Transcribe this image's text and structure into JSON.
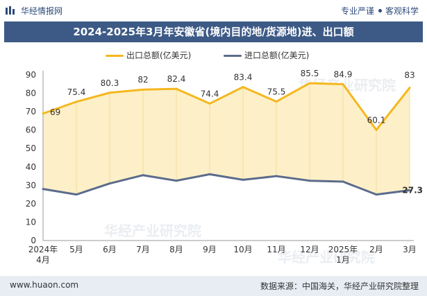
{
  "header": {
    "brand": "华经情报网",
    "tags": [
      "专业严谨",
      "客观科学"
    ]
  },
  "title": "2024-2025年3月年安徽省(境内目的地/货源地)进、出口额",
  "watermark": "华经产业研究院",
  "footer": {
    "url": "www.huaon.com",
    "source": "数据来源：中国海关，华经产业研究院整理"
  },
  "colors": {
    "export": "#f5b71f",
    "export_fill": "#fdf0c8",
    "import": "#5b6b8c",
    "title_bg": "#3d5a86"
  },
  "chart_data": {
    "type": "line",
    "categories": [
      "2024年\n4月",
      "5月",
      "6月",
      "7月",
      "8月",
      "9月",
      "10月",
      "11月",
      "12月",
      "2025年\n1月",
      "2月",
      "3月"
    ],
    "series": [
      {
        "name": "出口总额(亿美元)",
        "values": [
          69,
          75.4,
          80.3,
          82,
          82.4,
          74.4,
          83.4,
          75.5,
          85.5,
          84.9,
          60.1,
          83
        ],
        "labels": [
          "69",
          "75.4",
          "80.3",
          "82",
          "82.4",
          "74.4",
          "83.4",
          "75.5",
          "85.5",
          "84.9",
          "60.1",
          "83"
        ]
      },
      {
        "name": "进口总额(亿美元)",
        "values": [
          28,
          25,
          31,
          35.5,
          32.5,
          36,
          33,
          35,
          32.5,
          32,
          25,
          27.3
        ],
        "labels": [
          "",
          "",
          "",
          "",
          "",
          "",
          "",
          "",
          "",
          "",
          "",
          "27.3"
        ]
      }
    ],
    "ylim": [
      0,
      90
    ],
    "yticks": [
      0,
      10,
      20,
      30,
      40,
      50,
      60,
      70,
      80,
      90
    ],
    "grid": false,
    "legend": "top-center"
  }
}
